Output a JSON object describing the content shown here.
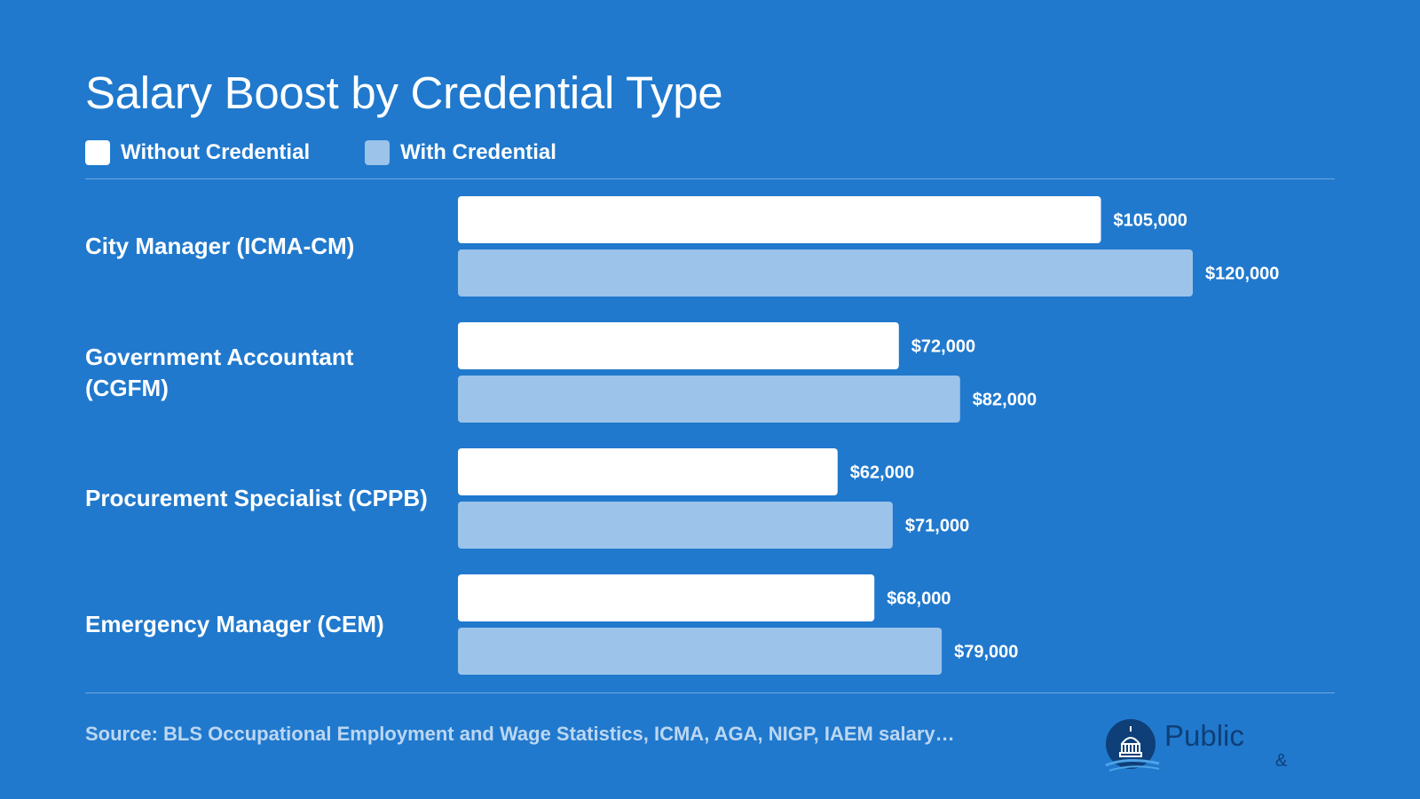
{
  "title": "Salary Boost by Credential Type",
  "legend": {
    "without": "Without Credential",
    "with": "With Credential"
  },
  "colors": {
    "background": "#2079cd",
    "without": "#ffffff",
    "with": "#9cc3e9"
  },
  "source": "Source: BLS Occupational Employment and Wage Statistics, ICMA, AGA, NIGP, IAEM salary…",
  "logo": {
    "icon": "capitol-dome-icon",
    "text": "Public",
    "amp": "&"
  },
  "chart_data": {
    "type": "bar",
    "orientation": "horizontal",
    "categories": [
      "City Manager (ICMA-CM)",
      "Government Accountant (CGFM)",
      "Procurement Specialist (CPPB)",
      "Emergency Manager (CEM)"
    ],
    "series": [
      {
        "name": "Without Credential",
        "values": [
          105000,
          72000,
          62000,
          68000
        ],
        "labels": [
          "$105,000",
          "$72,000",
          "$62,000",
          "$68,000"
        ]
      },
      {
        "name": "With Credential",
        "values": [
          120000,
          82000,
          71000,
          79000
        ],
        "labels": [
          "$120,000",
          "$82,000",
          "$71,000",
          "$79,000"
        ]
      }
    ],
    "title": "Salary Boost by Credential Type",
    "xlim": [
      0,
      120000
    ],
    "grid": false,
    "legend_position": "top-left"
  }
}
